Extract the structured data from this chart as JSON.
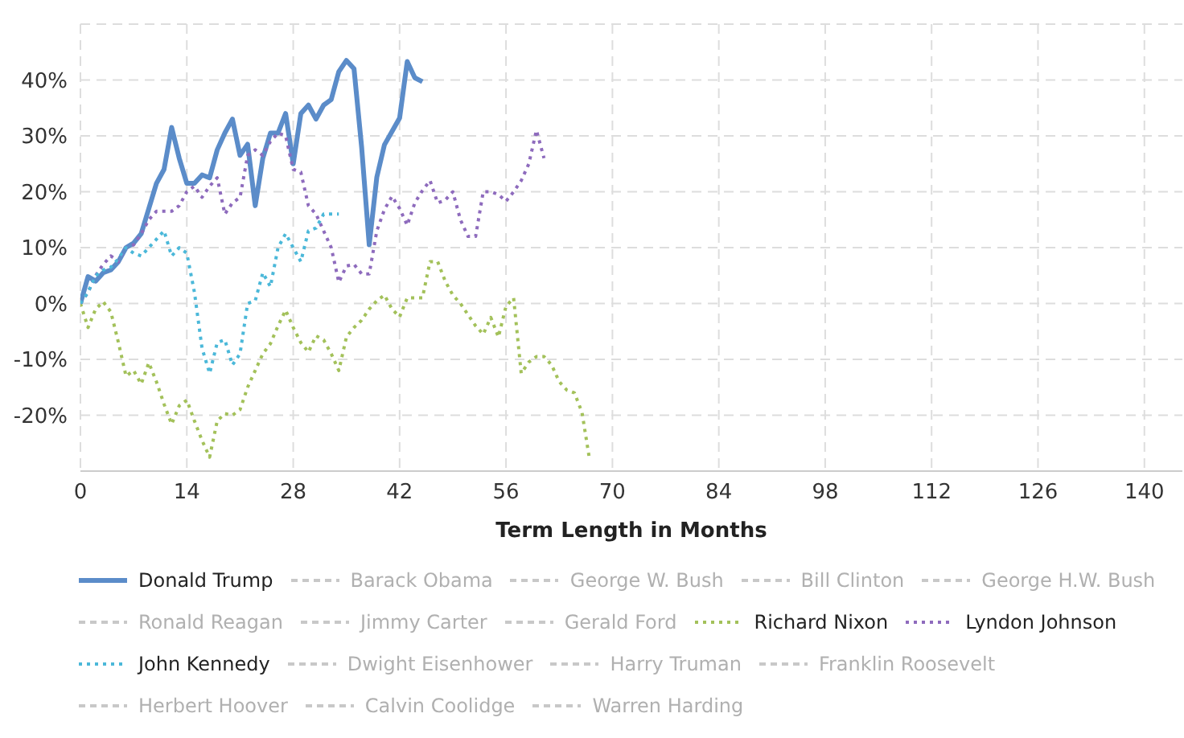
{
  "chart_data": {
    "type": "line",
    "xlabel": "Term Length in Months",
    "xlim": [
      0,
      145
    ],
    "xticks": [
      0,
      14,
      28,
      42,
      56,
      70,
      84,
      98,
      112,
      126,
      140
    ],
    "ylim": [
      -30,
      50
    ],
    "yticks": [
      {
        "value": -30,
        "label": null
      },
      {
        "value": -20,
        "label": "-20%"
      },
      {
        "value": -10,
        "label": "-10%"
      },
      {
        "value": 0,
        "label": "0%"
      },
      {
        "value": 10,
        "label": "10%"
      },
      {
        "value": 20,
        "label": "20%"
      },
      {
        "value": 30,
        "label": "30%"
      },
      {
        "value": 40,
        "label": "40%"
      },
      {
        "value": 50,
        "label": null
      }
    ],
    "grid": true,
    "legend": "bottom",
    "marker": "none",
    "series": [
      {
        "name": "Donald Trump",
        "color": "#5b8cc9",
        "line_style": "solid",
        "x": [
          0,
          1,
          2,
          3,
          4,
          5,
          6,
          7,
          8,
          9,
          10,
          11,
          12,
          13,
          14,
          15,
          16,
          17,
          18,
          19,
          20,
          21,
          22,
          23,
          24,
          25,
          26,
          27,
          28,
          29,
          30,
          31,
          32,
          33,
          34,
          35,
          36,
          37,
          38,
          39,
          40,
          41,
          42,
          43,
          44,
          45
        ],
        "values": [
          0,
          4.8,
          4,
          5.5,
          6,
          7.5,
          10,
          10.8,
          12.5,
          17,
          21.5,
          24,
          31.5,
          26,
          21.5,
          21.5,
          23,
          22.5,
          27.5,
          30.5,
          33,
          26.5,
          28.5,
          17.5,
          26,
          30.5,
          30.5,
          34,
          25,
          34,
          35.5,
          33,
          35.5,
          36.5,
          41.5,
          43.5,
          42,
          28,
          10.5,
          22.6,
          28.4,
          30.8,
          33.2,
          43.3,
          40.4,
          39.7
        ]
      },
      {
        "name": "Barack Obama",
        "color": "#c8c8c8",
        "line_style": "dashed"
      },
      {
        "name": "George W. Bush",
        "color": "#c8c8c8",
        "line_style": "dashed"
      },
      {
        "name": "Bill Clinton",
        "color": "#c8c8c8",
        "line_style": "dashed"
      },
      {
        "name": "George H.W. Bush",
        "color": "#c8c8c8",
        "line_style": "dashed"
      },
      {
        "name": "Ronald Reagan",
        "color": "#c8c8c8",
        "line_style": "dashed"
      },
      {
        "name": "Jimmy Carter",
        "color": "#c8c8c8",
        "line_style": "dashed"
      },
      {
        "name": "Gerald Ford",
        "color": "#c8c8c8",
        "line_style": "dashed"
      },
      {
        "name": "Richard Nixon",
        "color": "#a3c15a",
        "line_style": "dotted",
        "x": [
          0,
          1,
          2,
          3,
          4,
          5,
          6,
          7,
          8,
          9,
          10,
          11,
          12,
          13,
          14,
          15,
          16,
          17,
          18,
          19,
          20,
          21,
          22,
          23,
          24,
          25,
          26,
          27,
          28,
          29,
          30,
          31,
          32,
          33,
          34,
          35,
          36,
          37,
          38,
          39,
          40,
          41,
          42,
          43,
          44,
          45,
          46,
          47,
          48,
          49,
          50,
          51,
          52,
          53,
          54,
          55,
          56,
          57,
          58,
          59,
          60,
          61,
          62,
          63,
          64,
          65,
          66,
          67
        ],
        "values": [
          0,
          -4.3,
          -1,
          0.3,
          -1.5,
          -7,
          -13,
          -12,
          -14.4,
          -10.6,
          -14,
          -18,
          -21.6,
          -18.3,
          -17.3,
          -21,
          -24.5,
          -27.5,
          -21,
          -19.7,
          -20,
          -19,
          -15,
          -12,
          -9,
          -7.2,
          -4,
          -1.2,
          -4.3,
          -7,
          -8.7,
          -5.8,
          -6.5,
          -9,
          -12,
          -6,
          -4.3,
          -3,
          -1,
          0.5,
          1.5,
          -1,
          -2.4,
          1,
          1,
          1,
          7.5,
          7.5,
          4,
          1.5,
          0,
          -2,
          -4,
          -5.5,
          -2.5,
          -6,
          -0.5,
          1,
          -12.5,
          -10.5,
          -9.5,
          -9.5,
          -11,
          -14,
          -15.5,
          -16,
          -19.5,
          -28
        ]
      },
      {
        "name": "Lyndon Johnson",
        "color": "#8e6bbd",
        "line_style": "dotted",
        "x": [
          0,
          1,
          2,
          3,
          4,
          5,
          6,
          7,
          8,
          9,
          10,
          11,
          12,
          13,
          14,
          15,
          16,
          17,
          18,
          19,
          20,
          21,
          22,
          23,
          24,
          25,
          26,
          27,
          28,
          29,
          30,
          31,
          32,
          33,
          34,
          35,
          36,
          37,
          38,
          39,
          40,
          41,
          42,
          43,
          44,
          45,
          46,
          47,
          48,
          49,
          50,
          51,
          52,
          53,
          54,
          55,
          56,
          57,
          58,
          59,
          60,
          61
        ],
        "values": [
          0,
          2,
          5,
          7,
          8.5,
          7.5,
          10,
          10.5,
          12.5,
          15,
          16.5,
          16.5,
          16.5,
          17.5,
          20,
          21,
          19,
          21,
          22.5,
          16,
          18,
          19,
          26.5,
          27.5,
          26.5,
          29,
          30.5,
          30,
          24,
          23.5,
          17.5,
          16,
          13,
          10,
          3.8,
          6.7,
          7,
          5.3,
          5.3,
          13,
          16.8,
          19.2,
          17,
          14,
          18,
          20.2,
          22,
          18,
          18.5,
          20,
          15,
          12,
          12,
          20,
          20,
          19.5,
          18.3,
          20,
          22,
          25,
          31,
          26
        ]
      },
      {
        "name": "John Kennedy",
        "color": "#4bb8d9",
        "line_style": "dotted",
        "x": [
          0,
          1,
          2,
          3,
          4,
          5,
          6,
          7,
          8,
          9,
          10,
          11,
          12,
          13,
          14,
          15,
          16,
          17,
          18,
          19,
          20,
          21,
          22,
          23,
          24,
          25,
          26,
          27,
          28,
          29,
          30,
          31,
          32,
          33,
          34
        ],
        "values": [
          0,
          2,
          5,
          6,
          6.5,
          8,
          10,
          9,
          8.5,
          10,
          11.5,
          13,
          8.5,
          10,
          9,
          2,
          -8,
          -12.5,
          -7,
          -6.5,
          -11,
          -9,
          0,
          0.5,
          5.5,
          3,
          10,
          12.5,
          10,
          7.5,
          13,
          13.5,
          16,
          16,
          16
        ]
      },
      {
        "name": "Dwight Eisenhower",
        "color": "#c8c8c8",
        "line_style": "dashed"
      },
      {
        "name": "Harry Truman",
        "color": "#c8c8c8",
        "line_style": "dashed"
      },
      {
        "name": "Franklin Roosevelt",
        "color": "#c8c8c8",
        "line_style": "dashed"
      },
      {
        "name": "Herbert Hoover",
        "color": "#c8c8c8",
        "line_style": "dashed"
      },
      {
        "name": "Calvin Coolidge",
        "color": "#c8c8c8",
        "line_style": "dashed"
      },
      {
        "name": "Warren Harding",
        "color": "#c8c8c8",
        "line_style": "dashed"
      }
    ]
  }
}
